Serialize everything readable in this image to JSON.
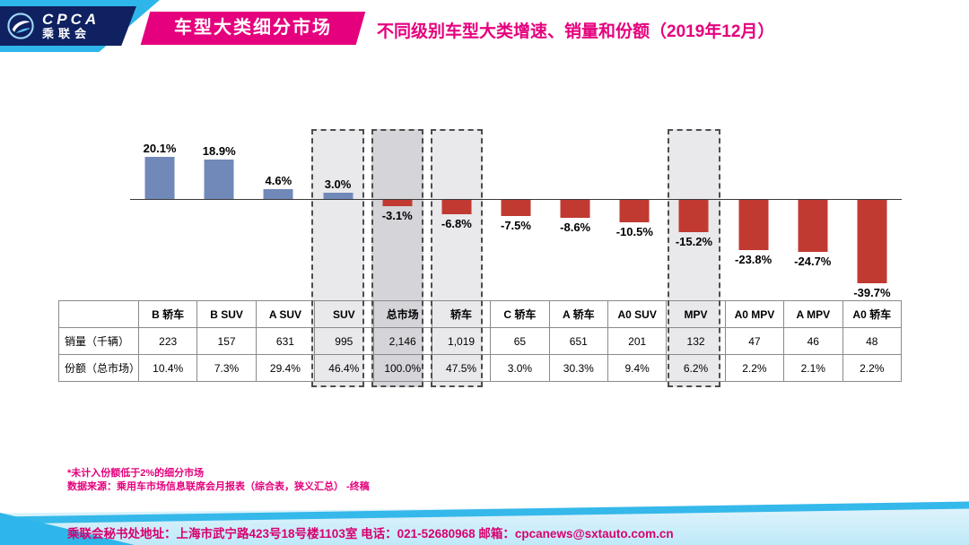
{
  "header": {
    "logo_main": "CPCA",
    "logo_sub": "乘联会",
    "banner": "车型大类细分市场",
    "title": "不同级别车型大类增速、销量和份额（2019年12月）"
  },
  "chart_data": {
    "type": "bar",
    "title": "不同级别车型大类增速、销量和份额（2019年12月）",
    "categories": [
      "B 轿车",
      "B SUV",
      "A SUV",
      "SUV",
      "总市场",
      "轿车",
      "C 轿车",
      "A 轿车",
      "A0 SUV",
      "MPV",
      "A0 MPV",
      "A MPV",
      "A0 轿车"
    ],
    "values": [
      20.1,
      18.9,
      4.6,
      3.0,
      -3.1,
      -6.8,
      -7.5,
      -8.6,
      -10.5,
      -15.2,
      -23.8,
      -24.7,
      -39.7
    ],
    "value_labels": [
      "20.1%",
      "18.9%",
      "4.6%",
      "3.0%",
      "-3.1%",
      "-6.8%",
      "-7.5%",
      "-8.6%",
      "-10.5%",
      "-15.2%",
      "-23.8%",
      "-24.7%",
      "-39.7%"
    ],
    "unit": "%",
    "ylim": [
      -45,
      25
    ],
    "grid": false,
    "legend": "none",
    "positive_color": "#7189b8",
    "negative_color": "#c13a32",
    "highlights": [
      {
        "index": 3,
        "label": "SUV",
        "strong": false
      },
      {
        "index": 4,
        "label": "总市场",
        "strong": true
      },
      {
        "index": 5,
        "label": "轿车",
        "strong": false
      },
      {
        "index": 9,
        "label": "MPV",
        "strong": false
      }
    ]
  },
  "table": {
    "row_headers": [
      "",
      "销量（千辆）",
      "份额（总市场）"
    ],
    "columns": [
      "B 轿车",
      "B SUV",
      "A SUV",
      "SUV",
      "总市场",
      "轿车",
      "C 轿车",
      "A 轿车",
      "A0 SUV",
      "MPV",
      "A0 MPV",
      "A MPV",
      "A0 轿车"
    ],
    "sales": [
      "223",
      "157",
      "631",
      "995",
      "2,146",
      "1,019",
      "65",
      "651",
      "201",
      "132",
      "47",
      "46",
      "48"
    ],
    "share": [
      "10.4%",
      "7.3%",
      "29.4%",
      "46.4%",
      "100.0%",
      "47.5%",
      "3.0%",
      "30.3%",
      "9.4%",
      "6.2%",
      "2.2%",
      "2.1%",
      "2.2%"
    ]
  },
  "footnotes": {
    "note1": "*未计入份额低于2%的细分市场",
    "note2": "数据来源：乘用车市场信息联席会月报表（综合表，狭义汇总）  -终稿"
  },
  "footer": {
    "contact": "乘联会秘书处地址：上海市武宁路423号18号楼1103室  电话：021-52680968  邮箱：cpcanews@sxtauto.com.cn"
  },
  "colors": {
    "accent_magenta": "#e5007d",
    "cyan": "#2eb6ea",
    "navy": "#0f2161",
    "bar_blue": "#7189b8",
    "bar_red": "#c13a32"
  }
}
